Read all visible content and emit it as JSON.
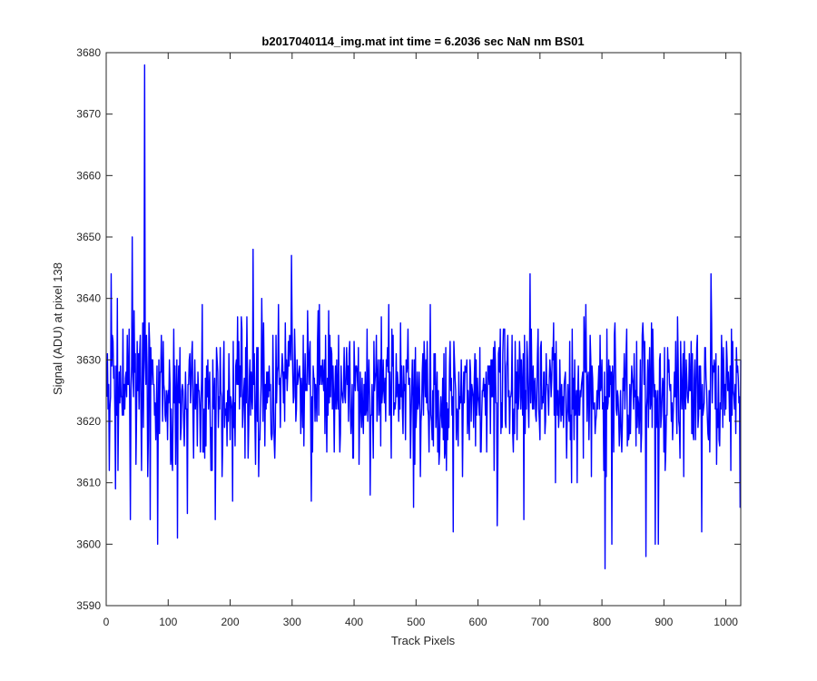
{
  "chart_data": {
    "type": "line",
    "title": "b2017040114_img.mat int time = 6.2036 sec  NaN nm BS01",
    "xlabel": "Track Pixels",
    "ylabel": "Signal (ADU) at pixel 138",
    "xlim": [
      0,
      1024
    ],
    "ylim": [
      3590,
      3680
    ],
    "xticks": [
      0,
      100,
      200,
      300,
      400,
      500,
      600,
      700,
      800,
      900,
      1000
    ],
    "yticks": [
      3590,
      3600,
      3610,
      3620,
      3630,
      3640,
      3650,
      3660,
      3670,
      3680
    ],
    "grid": false,
    "series": [
      {
        "color": "#0000ff",
        "point_count": 1024,
        "baseline": 3624,
        "noise_range": [
          3610,
          3640
        ],
        "peaks": [
          {
            "x": 4,
            "y": 3612
          },
          {
            "x": 7,
            "y": 3644
          },
          {
            "x": 14,
            "y": 3609
          },
          {
            "x": 17,
            "y": 3640
          },
          {
            "x": 38,
            "y": 3604
          },
          {
            "x": 41,
            "y": 3650
          },
          {
            "x": 47,
            "y": 3613
          },
          {
            "x": 61,
            "y": 3678
          },
          {
            "x": 66,
            "y": 3611
          },
          {
            "x": 70,
            "y": 3604
          },
          {
            "x": 82,
            "y": 3600
          },
          {
            "x": 114,
            "y": 3601
          },
          {
            "x": 130,
            "y": 3605
          },
          {
            "x": 175,
            "y": 3604
          },
          {
            "x": 203,
            "y": 3607
          },
          {
            "x": 236,
            "y": 3648
          },
          {
            "x": 250,
            "y": 3640
          },
          {
            "x": 298,
            "y": 3647
          },
          {
            "x": 330,
            "y": 3607
          },
          {
            "x": 425,
            "y": 3608
          },
          {
            "x": 495,
            "y": 3606
          },
          {
            "x": 559,
            "y": 3602
          },
          {
            "x": 630,
            "y": 3603
          },
          {
            "x": 673,
            "y": 3604
          },
          {
            "x": 683,
            "y": 3644
          },
          {
            "x": 804,
            "y": 3596
          },
          {
            "x": 815,
            "y": 3600
          },
          {
            "x": 870,
            "y": 3598
          },
          {
            "x": 885,
            "y": 3600
          },
          {
            "x": 890,
            "y": 3600
          },
          {
            "x": 960,
            "y": 3602
          },
          {
            "x": 975,
            "y": 3644
          },
          {
            "x": 1022,
            "y": 3606
          }
        ]
      }
    ]
  }
}
